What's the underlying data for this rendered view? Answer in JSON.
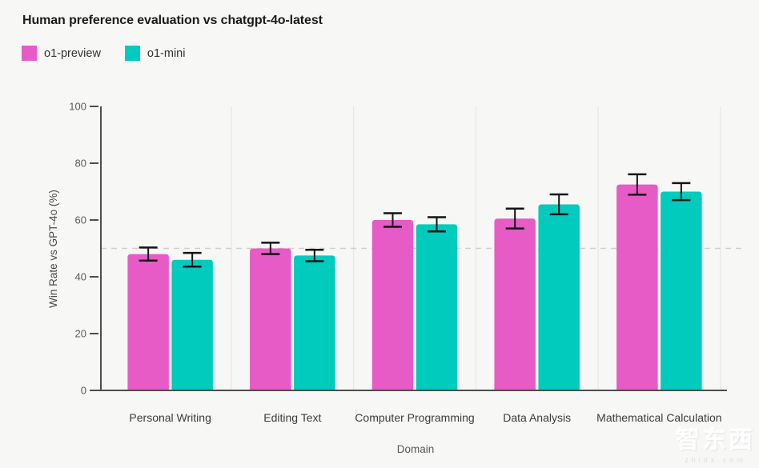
{
  "header": {
    "title": "Human preference evaluation vs chatgpt-4o-latest"
  },
  "legend": [
    {
      "label": "o1-preview",
      "color": "#e75bc6"
    },
    {
      "label": "o1-mini",
      "color": "#00cbbc"
    }
  ],
  "chart_data": {
    "type": "bar",
    "title": "Human preference evaluation vs chatgpt-4o-latest",
    "categories": [
      "Personal Writing",
      "Editing Text",
      "Computer Programming",
      "Data Analysis",
      "Mathematical Calculation"
    ],
    "series": [
      {
        "name": "o1-preview",
        "color": "#e75bc6",
        "values": [
          48,
          50,
          60,
          60.5,
          72.5
        ],
        "errors": [
          2.3,
          2.0,
          2.4,
          3.5,
          3.6
        ]
      },
      {
        "name": "o1-mini",
        "color": "#00cbbc",
        "values": [
          46,
          47.5,
          58.5,
          65.5,
          70
        ],
        "errors": [
          2.4,
          2.0,
          2.5,
          3.5,
          3.0
        ]
      }
    ],
    "xlabel": "Domain",
    "ylabel": "Win Rate vs GPT-4o (%)",
    "ylim": [
      0,
      100
    ],
    "yticks": [
      0,
      20,
      40,
      60,
      80,
      100
    ],
    "reference_line": 50,
    "grid": "vertical-category-separators",
    "legend_position": "top-left",
    "colors": {
      "axis": "#4d4d4d",
      "error_bar": "#141414",
      "reference_line": "#cfcfcf",
      "gridline": "#e7e7e7",
      "background": "#f7f7f6"
    }
  },
  "watermark": {
    "logo": "智东西",
    "domain": "zhidx.com"
  }
}
